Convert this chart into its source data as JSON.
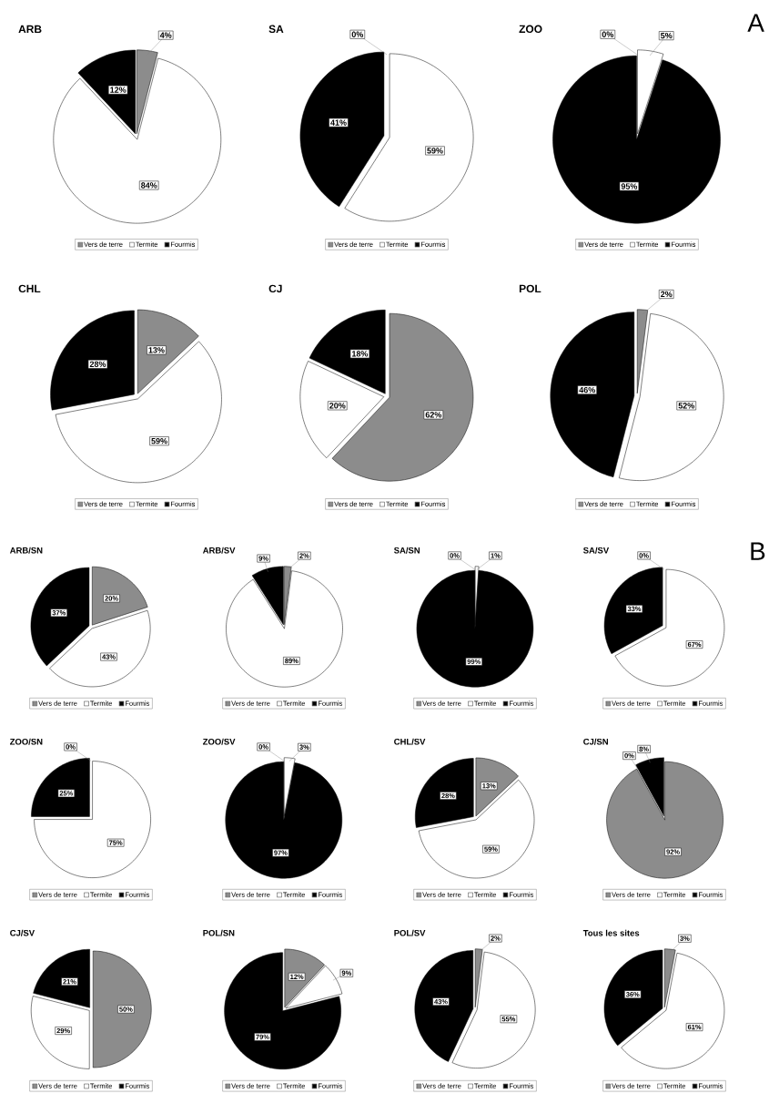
{
  "chart_data": [
    {
      "type": "pie",
      "title": "ARB",
      "categories": [
        "Vers de terre",
        "Termite",
        "Fourmis"
      ],
      "values": [
        4,
        84,
        12
      ],
      "value_labels": [
        "4%",
        "84%",
        "12%"
      ],
      "colors": [
        "#8c8c8c",
        "#ffffff",
        "#000000"
      ],
      "legend": "bottom"
    },
    {
      "type": "pie",
      "title": "SA",
      "categories": [
        "Vers de terre",
        "Termite",
        "Fourmis"
      ],
      "values": [
        0,
        59,
        41
      ],
      "value_labels": [
        "0%",
        "59%",
        "41%"
      ],
      "colors": [
        "#8c8c8c",
        "#ffffff",
        "#000000"
      ],
      "legend": "bottom"
    },
    {
      "type": "pie",
      "title": "ZOO",
      "categories": [
        "Vers de terre",
        "Termite",
        "Fourmis"
      ],
      "values": [
        0,
        5,
        95
      ],
      "value_labels": [
        "0%",
        "5%",
        "95%"
      ],
      "colors": [
        "#8c8c8c",
        "#ffffff",
        "#000000"
      ],
      "legend": "bottom",
      "annotations": [
        "A"
      ]
    },
    {
      "type": "pie",
      "title": "CHL",
      "categories": [
        "Vers de terre",
        "Termite",
        "Fourmis"
      ],
      "values": [
        13,
        59,
        28
      ],
      "value_labels": [
        "13%",
        "59%",
        "28%"
      ],
      "colors": [
        "#8c8c8c",
        "#ffffff",
        "#000000"
      ],
      "legend": "bottom"
    },
    {
      "type": "pie",
      "title": "CJ",
      "categories": [
        "Vers de terre",
        "Termite",
        "Fourmis"
      ],
      "values": [
        62,
        20,
        18
      ],
      "value_labels": [
        "62%",
        "20%",
        "18%"
      ],
      "colors": [
        "#8c8c8c",
        "#ffffff",
        "#000000"
      ],
      "legend": "bottom"
    },
    {
      "type": "pie",
      "title": "POL",
      "categories": [
        "Vers de terre",
        "Termite",
        "Fourmis"
      ],
      "values": [
        2,
        52,
        46
      ],
      "value_labels": [
        "2%",
        "52%",
        "46%"
      ],
      "colors": [
        "#8c8c8c",
        "#ffffff",
        "#000000"
      ],
      "legend": "bottom"
    },
    {
      "type": "pie",
      "title": "ARB/SN",
      "categories": [
        "Vers de terre",
        "Termite",
        "Fourmis"
      ],
      "values": [
        20,
        43,
        37
      ],
      "value_labels": [
        "20%",
        "43%",
        "37%"
      ],
      "colors": [
        "#8c8c8c",
        "#ffffff",
        "#000000"
      ],
      "legend": "bottom"
    },
    {
      "type": "pie",
      "title": "ARB/SV",
      "categories": [
        "Vers de terre",
        "Termite",
        "Fourmis"
      ],
      "values": [
        2,
        89,
        9
      ],
      "value_labels": [
        "2%",
        "89%",
        "9%"
      ],
      "colors": [
        "#8c8c8c",
        "#ffffff",
        "#000000"
      ],
      "legend": "bottom"
    },
    {
      "type": "pie",
      "title": "SA/SN",
      "categories": [
        "Vers de terre",
        "Termite",
        "Fourmis"
      ],
      "values": [
        0,
        1,
        99
      ],
      "value_labels": [
        "0%",
        "1%",
        "99%"
      ],
      "colors": [
        "#8c8c8c",
        "#ffffff",
        "#000000"
      ],
      "legend": "bottom"
    },
    {
      "type": "pie",
      "title": "SA/SV",
      "categories": [
        "Vers de terre",
        "Termite",
        "Fourmis"
      ],
      "values": [
        0,
        67,
        33
      ],
      "value_labels": [
        "0%",
        "67%",
        "33%"
      ],
      "colors": [
        "#8c8c8c",
        "#ffffff",
        "#000000"
      ],
      "legend": "bottom",
      "annotations": [
        "B"
      ]
    },
    {
      "type": "pie",
      "title": "ZOO/SN",
      "categories": [
        "Vers de terre",
        "Termite",
        "Fourmis"
      ],
      "values": [
        0,
        75,
        25
      ],
      "value_labels": [
        "0%",
        "75%",
        "25%"
      ],
      "colors": [
        "#8c8c8c",
        "#ffffff",
        "#000000"
      ],
      "legend": "bottom"
    },
    {
      "type": "pie",
      "title": "ZOO/SV",
      "categories": [
        "Vers de terre",
        "Termite",
        "Fourmis"
      ],
      "values": [
        0,
        3,
        97
      ],
      "value_labels": [
        "0%",
        "3%",
        "97%"
      ],
      "colors": [
        "#8c8c8c",
        "#ffffff",
        "#000000"
      ],
      "legend": "bottom"
    },
    {
      "type": "pie",
      "title": "CHL/SV",
      "categories": [
        "Vers de terre",
        "Termite",
        "Fourmis"
      ],
      "values": [
        13,
        59,
        28
      ],
      "value_labels": [
        "13%",
        "59%",
        "28%"
      ],
      "colors": [
        "#8c8c8c",
        "#ffffff",
        "#000000"
      ],
      "legend": "bottom"
    },
    {
      "type": "pie",
      "title": "CJ/SN",
      "categories": [
        "Vers de terre",
        "Termite",
        "Fourmis"
      ],
      "values": [
        92,
        0,
        8
      ],
      "value_labels": [
        "92%",
        "0%",
        "8%"
      ],
      "colors": [
        "#8c8c8c",
        "#ffffff",
        "#000000"
      ],
      "legend": "bottom"
    },
    {
      "type": "pie",
      "title": "CJ/SV",
      "categories": [
        "Vers de terre",
        "Termite",
        "Fourmis"
      ],
      "values": [
        50,
        29,
        21
      ],
      "value_labels": [
        "50%",
        "29%",
        "21%"
      ],
      "colors": [
        "#8c8c8c",
        "#ffffff",
        "#000000"
      ],
      "legend": "bottom"
    },
    {
      "type": "pie",
      "title": "POL/SN",
      "categories": [
        "Vers de terre",
        "Termite",
        "Fourmis"
      ],
      "values": [
        12,
        9,
        79
      ],
      "value_labels": [
        "12%",
        "9%",
        "79%"
      ],
      "colors": [
        "#8c8c8c",
        "#ffffff",
        "#000000"
      ],
      "legend": "bottom"
    },
    {
      "type": "pie",
      "title": "POL/SV",
      "categories": [
        "Vers de terre",
        "Termite",
        "Fourmis"
      ],
      "values": [
        2,
        55,
        43
      ],
      "value_labels": [
        "2%",
        "55%",
        "43%"
      ],
      "colors": [
        "#8c8c8c",
        "#ffffff",
        "#000000"
      ],
      "legend": "bottom"
    },
    {
      "type": "pie",
      "title": "Tous les sites",
      "categories": [
        "Vers de terre",
        "Termite",
        "Fourmis"
      ],
      "values": [
        3,
        61,
        36
      ],
      "value_labels": [
        "3%",
        "61%",
        "36%"
      ],
      "colors": [
        "#8c8c8c",
        "#ffffff",
        "#000000"
      ],
      "legend": "bottom"
    }
  ]
}
